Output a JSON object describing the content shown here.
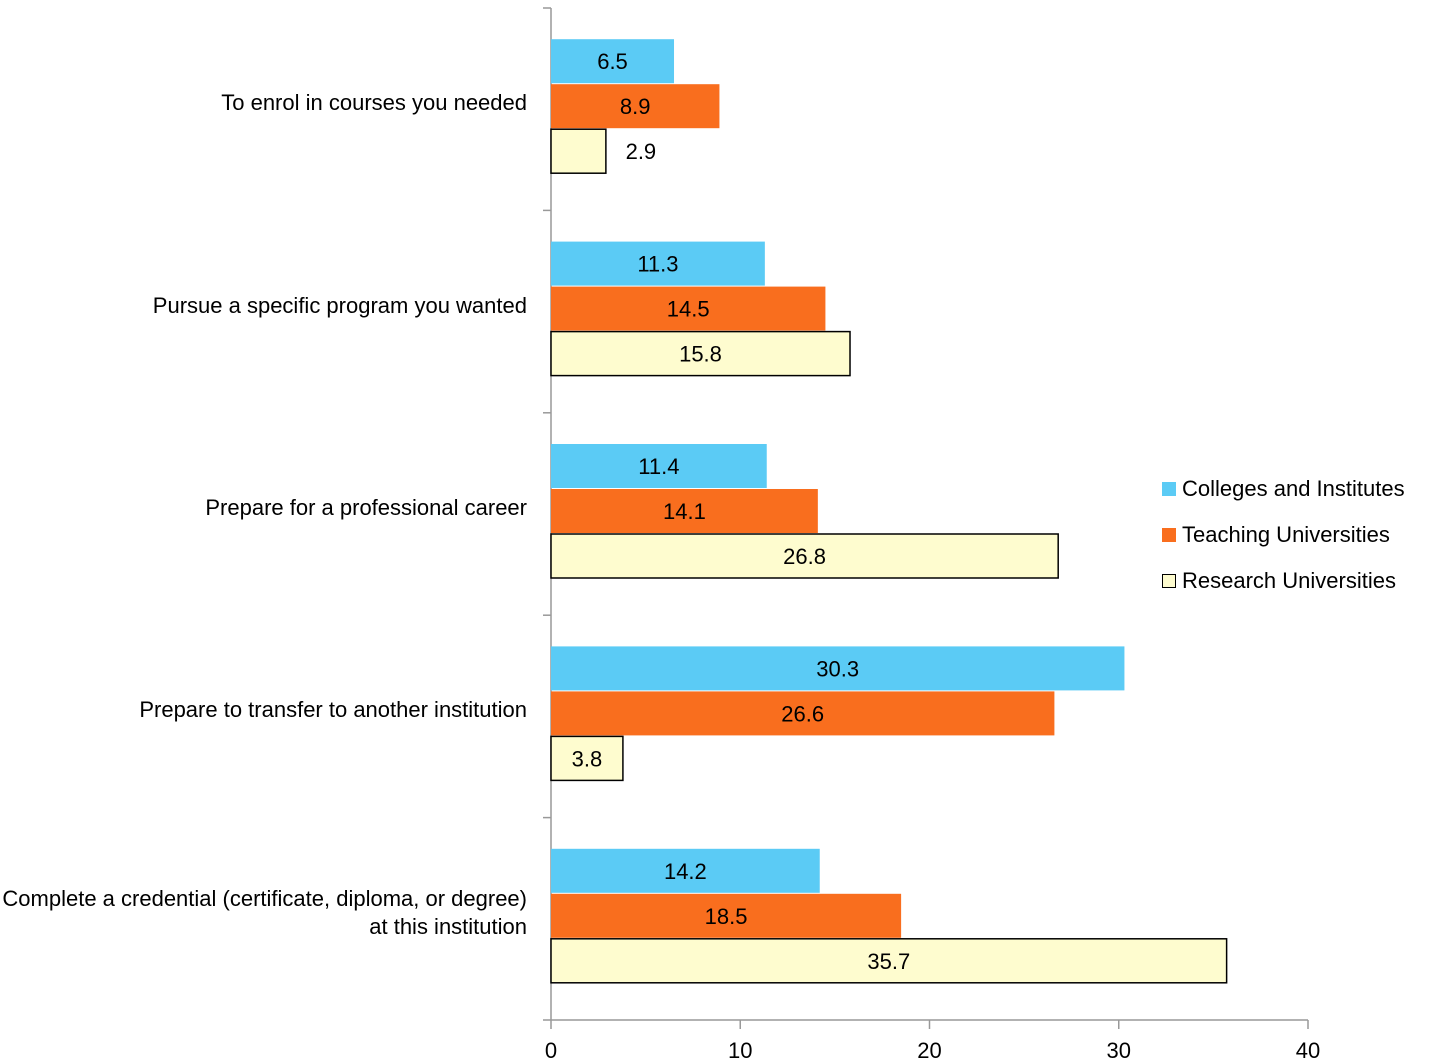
{
  "chart_data": {
    "type": "bar",
    "orientation": "horizontal",
    "categories": [
      "To enrol in courses you needed",
      "Pursue a specific program you wanted",
      "Prepare for a professional career",
      "Prepare to transfer to another institution",
      "Complete a credential (certificate, diploma, or degree) at this institution"
    ],
    "series": [
      {
        "name": "Colleges and Institutes",
        "color": "#5bcbf5",
        "values": [
          6.5,
          11.3,
          11.4,
          30.3,
          14.2
        ]
      },
      {
        "name": "Teaching Universities",
        "color": "#f96e1e",
        "values": [
          8.9,
          14.5,
          14.1,
          26.6,
          18.5
        ]
      },
      {
        "name": "Research Universities",
        "color": "#fefccf",
        "values": [
          2.9,
          15.8,
          26.8,
          3.8,
          35.7
        ]
      }
    ],
    "xlim": [
      0,
      40
    ],
    "xticks": [
      0,
      10,
      20,
      30,
      40
    ],
    "title": "",
    "xlabel": "",
    "ylabel": "",
    "grid": false,
    "legend_position": "right"
  }
}
